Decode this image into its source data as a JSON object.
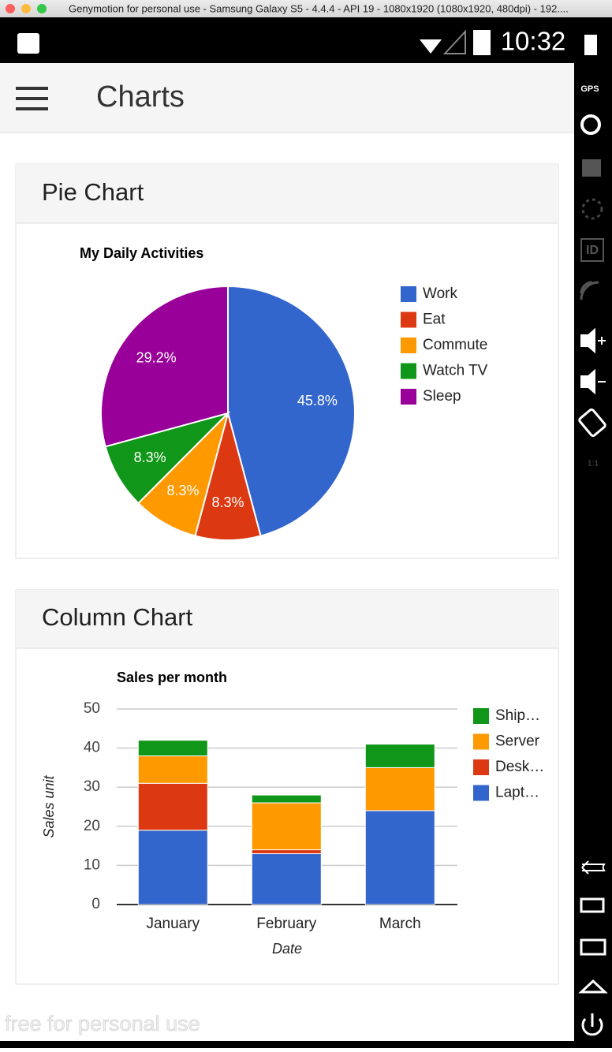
{
  "window": {
    "title": "Genymotion for personal use - Samsung Galaxy S5 - 4.4.4 - API 19 - 1080x1920 (1080x1920, 480dpi) - 192...."
  },
  "status_bar": {
    "time": "10:32"
  },
  "app_bar": {
    "title": "Charts"
  },
  "sidebar": {
    "gps": "GPS",
    "id": "ID",
    "ratio": "1:1"
  },
  "cards": [
    {
      "heading": "Pie Chart",
      "chart_data": {
        "type": "pie",
        "title": "My Daily Activities",
        "categories": [
          "Work",
          "Eat",
          "Commute",
          "Watch TV",
          "Sleep"
        ],
        "values": [
          45.8,
          8.3,
          8.3,
          8.3,
          29.2
        ],
        "value_labels": [
          "45.8%",
          "8.3%",
          "8.3%",
          "8.3%",
          "29.2%"
        ],
        "colors": [
          "#3366cc",
          "#dc3912",
          "#ff9900",
          "#109618",
          "#990099"
        ],
        "legend": "right"
      }
    },
    {
      "heading": "Column Chart",
      "chart_data": {
        "type": "bar",
        "stacked": true,
        "title": "Sales per month",
        "x_label": "Date",
        "y_label": "Sales unit",
        "categories": [
          "January",
          "February",
          "March"
        ],
        "series": [
          {
            "name": "Lapt…",
            "color": "#3366cc",
            "values": [
              19,
              13,
              24
            ]
          },
          {
            "name": "Desk…",
            "color": "#dc3912",
            "values": [
              12,
              1,
              0
            ]
          },
          {
            "name": "Server",
            "color": "#ff9900",
            "values": [
              7,
              12,
              11
            ]
          },
          {
            "name": "Ship…",
            "color": "#109618",
            "values": [
              4,
              2,
              6
            ]
          }
        ],
        "ylim": [
          0,
          50
        ],
        "yticks": [
          0,
          10,
          20,
          30,
          40,
          50
        ],
        "grid": true,
        "legend": "right"
      }
    }
  ],
  "watermark": "free for personal use"
}
